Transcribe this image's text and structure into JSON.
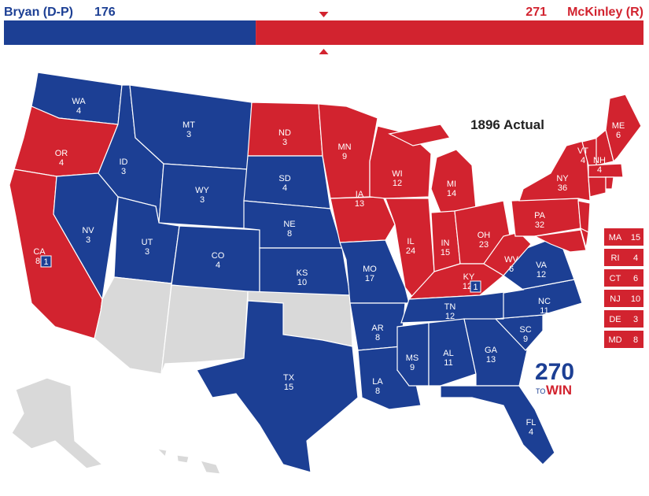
{
  "header": {
    "candidates": [
      {
        "name": "Bryan (D-P)",
        "votes": 176,
        "party": "D"
      },
      {
        "name": "McKinley (R)",
        "votes": 271,
        "party": "R"
      }
    ]
  },
  "colors": {
    "D": "#1c3f94",
    "R": "#d2232f",
    "none": "#d9d9d9"
  },
  "map": {
    "title": "1896 Actual",
    "states": [
      {
        "abbr": "WA",
        "votes": 4,
        "party": "D"
      },
      {
        "abbr": "OR",
        "votes": 4,
        "party": "R"
      },
      {
        "abbr": "CA",
        "votes": 8,
        "party": "R",
        "split": 1,
        "split_party": "D"
      },
      {
        "abbr": "NV",
        "votes": 3,
        "party": "D"
      },
      {
        "abbr": "ID",
        "votes": 3,
        "party": "D"
      },
      {
        "abbr": "MT",
        "votes": 3,
        "party": "D"
      },
      {
        "abbr": "WY",
        "votes": 3,
        "party": "D"
      },
      {
        "abbr": "UT",
        "votes": 3,
        "party": "D"
      },
      {
        "abbr": "CO",
        "votes": 4,
        "party": "D"
      },
      {
        "abbr": "ND",
        "votes": 3,
        "party": "R"
      },
      {
        "abbr": "SD",
        "votes": 4,
        "party": "D"
      },
      {
        "abbr": "NE",
        "votes": 8,
        "party": "D"
      },
      {
        "abbr": "KS",
        "votes": 10,
        "party": "D"
      },
      {
        "abbr": "TX",
        "votes": 15,
        "party": "D"
      },
      {
        "abbr": "MN",
        "votes": 9,
        "party": "R"
      },
      {
        "abbr": "IA",
        "votes": 13,
        "party": "R"
      },
      {
        "abbr": "MO",
        "votes": 17,
        "party": "D"
      },
      {
        "abbr": "AR",
        "votes": 8,
        "party": "D"
      },
      {
        "abbr": "LA",
        "votes": 8,
        "party": "D"
      },
      {
        "abbr": "WI",
        "votes": 12,
        "party": "R"
      },
      {
        "abbr": "IL",
        "votes": 24,
        "party": "R"
      },
      {
        "abbr": "MI",
        "votes": 14,
        "party": "R"
      },
      {
        "abbr": "IN",
        "votes": 15,
        "party": "R"
      },
      {
        "abbr": "OH",
        "votes": 23,
        "party": "R"
      },
      {
        "abbr": "KY",
        "votes": 12,
        "party": "R",
        "split": 1,
        "split_party": "D"
      },
      {
        "abbr": "TN",
        "votes": 12,
        "party": "D"
      },
      {
        "abbr": "MS",
        "votes": 9,
        "party": "D"
      },
      {
        "abbr": "AL",
        "votes": 11,
        "party": "D"
      },
      {
        "abbr": "GA",
        "votes": 13,
        "party": "D"
      },
      {
        "abbr": "FL",
        "votes": 4,
        "party": "D"
      },
      {
        "abbr": "SC",
        "votes": 9,
        "party": "D"
      },
      {
        "abbr": "NC",
        "votes": 11,
        "party": "D"
      },
      {
        "abbr": "VA",
        "votes": 12,
        "party": "D"
      },
      {
        "abbr": "WV",
        "votes": 6,
        "party": "R"
      },
      {
        "abbr": "PA",
        "votes": 32,
        "party": "R"
      },
      {
        "abbr": "NY",
        "votes": 36,
        "party": "R"
      },
      {
        "abbr": "VT",
        "votes": 4,
        "party": "R"
      },
      {
        "abbr": "NH",
        "votes": 4,
        "party": "R"
      },
      {
        "abbr": "ME",
        "votes": 6,
        "party": "R"
      }
    ],
    "callouts": [
      {
        "abbr": "MA",
        "votes": 15,
        "party": "R"
      },
      {
        "abbr": "RI",
        "votes": 4,
        "party": "R"
      },
      {
        "abbr": "CT",
        "votes": 6,
        "party": "R"
      },
      {
        "abbr": "NJ",
        "votes": 10,
        "party": "R"
      },
      {
        "abbr": "DE",
        "votes": 3,
        "party": "R"
      },
      {
        "abbr": "MD",
        "votes": 8,
        "party": "R"
      }
    ]
  },
  "logo": {
    "number": "270",
    "to": "TO",
    "win": "WIN"
  }
}
